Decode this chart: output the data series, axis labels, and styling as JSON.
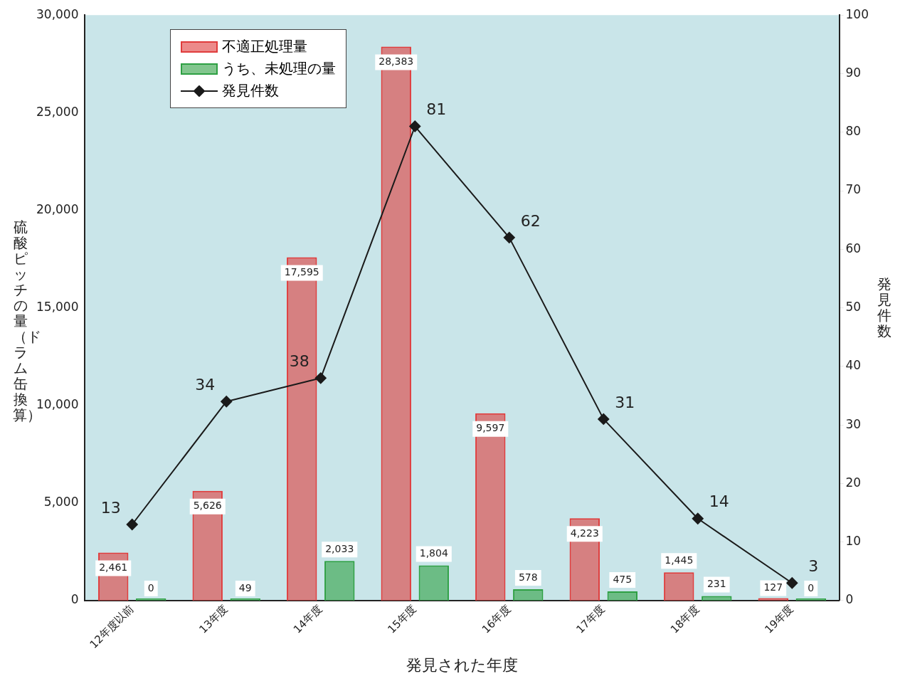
{
  "chart_data": {
    "type": "bar",
    "xlabel": "発見された年度",
    "ylabel": "硫酸ピッチの量（ドラム缶換算）",
    "y2label": "発見件数",
    "categories": [
      "12年度以前",
      "13年度",
      "14年度",
      "15年度",
      "16年度",
      "17年度",
      "18年度",
      "19年度"
    ],
    "series": [
      {
        "name": "不適正処理量",
        "color": "#e03c3c",
        "values": [
          2461,
          5626,
          17595,
          28383,
          9597,
          4223,
          1445,
          127
        ],
        "value_labels": [
          "2,461",
          "5,626",
          "17,595",
          "28,383",
          "9,597",
          "4,223",
          "1,445",
          "127"
        ]
      },
      {
        "name": "うち、未処理の量",
        "color": "#2ea043",
        "values": [
          0,
          49,
          2033,
          1804,
          578,
          475,
          231,
          0
        ],
        "value_labels": [
          "0",
          "49",
          "2,033",
          "1,804",
          "578",
          "475",
          "231",
          "0"
        ]
      },
      {
        "name": "発見件数",
        "type": "line",
        "axis": "y2",
        "color": "#1a1a1a",
        "marker": "diamond",
        "values": [
          13,
          34,
          38,
          81,
          62,
          31,
          14,
          3
        ],
        "value_labels": [
          "13",
          "34",
          "38",
          "81",
          "62",
          "31",
          "14",
          "3"
        ]
      }
    ],
    "ylim": [
      0,
      30000
    ],
    "yticks": [
      {
        "value": 0,
        "label": "0"
      },
      {
        "value": 5000,
        "label": "5,000"
      },
      {
        "value": 10000,
        "label": "10,000"
      },
      {
        "value": 15000,
        "label": "15,000"
      },
      {
        "value": 20000,
        "label": "20,000"
      },
      {
        "value": 25000,
        "label": "25,000"
      },
      {
        "value": 30000,
        "label": "30,000"
      }
    ],
    "y2lim": [
      0,
      100
    ],
    "y2ticks": [
      0,
      10,
      20,
      30,
      40,
      50,
      60,
      70,
      80,
      90,
      100
    ],
    "grid": false,
    "legend": "top left"
  }
}
